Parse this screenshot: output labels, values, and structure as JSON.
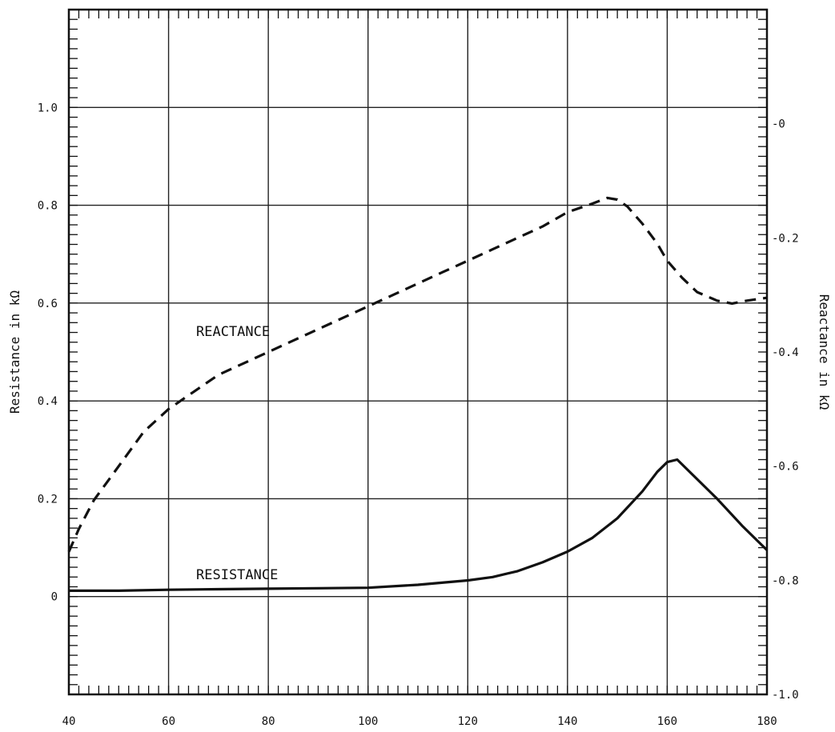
{
  "chart_data": {
    "type": "line",
    "title": "",
    "xlabel": "",
    "ylabel": "Resistance in kΩ",
    "y2label": "Reactance in kΩ",
    "xlim": [
      40,
      180
    ],
    "ylim": [
      -0.2,
      1.2
    ],
    "y2lim": [
      -1.0,
      0.2
    ],
    "grid": true,
    "x_ticks": [
      "40",
      "60",
      "80",
      "100",
      "120",
      "140",
      "160",
      "180"
    ],
    "y_ticks": [
      "0",
      "0.2",
      "0.4",
      "0.6",
      "0.8",
      "1.0"
    ],
    "y2_ticks": [
      "-1.0",
      "-0.8",
      "-0.6",
      "-0.4",
      "-0.2",
      "-0"
    ],
    "series": [
      {
        "name": "RESISTANCE",
        "axis": "left",
        "style": "solid",
        "x": [
          40,
          50,
          60,
          70,
          80,
          90,
          100,
          110,
          120,
          125,
          130,
          135,
          140,
          145,
          150,
          155,
          158,
          160,
          162,
          165,
          170,
          175,
          180
        ],
        "y": [
          0.012,
          0.012,
          0.014,
          0.015,
          0.016,
          0.017,
          0.018,
          0.024,
          0.033,
          0.04,
          0.052,
          0.07,
          0.092,
          0.12,
          0.16,
          0.215,
          0.255,
          0.275,
          0.28,
          0.25,
          0.2,
          0.145,
          0.095
        ]
      },
      {
        "name": "REACTANCE",
        "axis": "right",
        "style": "dashed",
        "x": [
          40,
          42,
          45,
          50,
          55,
          60,
          65,
          70,
          75,
          80,
          85,
          90,
          95,
          100,
          105,
          110,
          115,
          120,
          125,
          130,
          135,
          140,
          145,
          148,
          150,
          152,
          155,
          158,
          160,
          163,
          166,
          170,
          173,
          176,
          180
        ],
        "y": [
          -0.75,
          -0.71,
          -0.66,
          -0.6,
          -0.54,
          -0.5,
          -0.47,
          -0.44,
          -0.42,
          -0.4,
          -0.38,
          -0.36,
          -0.34,
          -0.32,
          -0.3,
          -0.28,
          -0.26,
          -0.24,
          -0.22,
          -0.2,
          -0.18,
          -0.155,
          -0.14,
          -0.13,
          -0.133,
          -0.145,
          -0.175,
          -0.21,
          -0.24,
          -0.27,
          -0.295,
          -0.31,
          -0.315,
          -0.31,
          -0.305
        ]
      }
    ]
  }
}
